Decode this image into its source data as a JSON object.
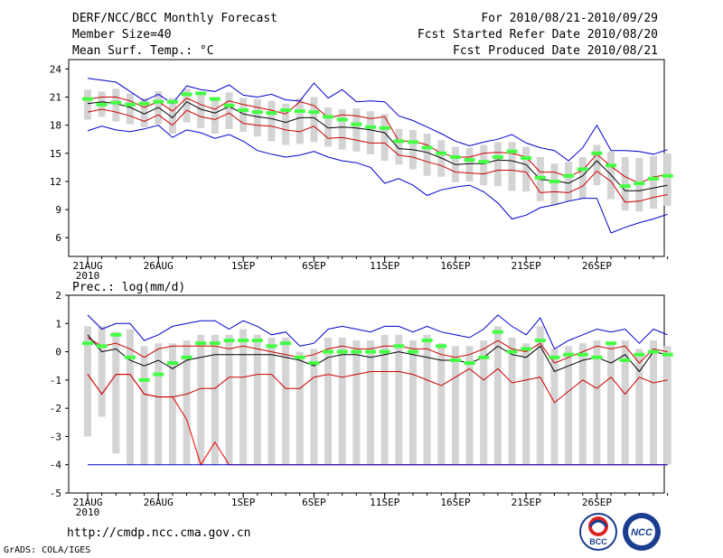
{
  "header": {
    "title": "DERF/NCC/BCC Monthly Forecast",
    "member_size": "Member Size=40",
    "variable": "Mean Surf. Temp.: °C",
    "forecast_range": "For 2010/08/21-2010/09/29",
    "start_ref_date": "Fcst Started Refer Date 2010/08/20",
    "produced_date": "Fcst Produced Date 2010/08/21"
  },
  "footer": {
    "url": "http://cmdp.ncc.cma.gov.cn",
    "credit": "GrADS: COLA/IGES"
  },
  "logos": {
    "bcc": "BCC",
    "ncc": "NCC"
  },
  "colors": {
    "max": "#0000cc",
    "min": "#cc0000",
    "p25": "#ee0000",
    "mean": "#000000",
    "box": "#d4d4d4",
    "obs": "#44ff44"
  },
  "chart_data": [
    {
      "type": "line",
      "title": "Mean Surf. Temp.: °C",
      "ylabel": "",
      "ylim": [
        4,
        25
      ],
      "yticks": [
        6,
        9,
        12,
        15,
        18,
        21,
        24
      ],
      "x_tick_labels": [
        {
          "day": 0,
          "label": "21AUG"
        },
        {
          "day": 5,
          "label": "26AUG"
        },
        {
          "day": 11,
          "label": "1SEP"
        },
        {
          "day": 16,
          "label": "6SEP"
        },
        {
          "day": 21,
          "label": "11SEP"
        },
        {
          "day": 26,
          "label": "16SEP"
        },
        {
          "day": 31,
          "label": "21SEP"
        },
        {
          "day": 36,
          "label": "26SEP"
        }
      ],
      "year_label": "2010",
      "series": [
        {
          "name": "max",
          "values": [
            23,
            22.8,
            22.6,
            21.6,
            20.6,
            21.3,
            20.3,
            22.2,
            21.8,
            21.6,
            22.3,
            21.2,
            21,
            21.3,
            20.7,
            20.6,
            22.5,
            20.9,
            21.8,
            20.5,
            20.6,
            20.5,
            19,
            18.5,
            17.8,
            17.1,
            16.3,
            15.8,
            16.2,
            16.5,
            17,
            16.1,
            15.6,
            15.3,
            14.2,
            15.6,
            18,
            15.3,
            15.3,
            15.2,
            14.9,
            15.4
          ]
        },
        {
          "name": "upper",
          "values": [
            20.8,
            21,
            21,
            20.6,
            19.9,
            20.5,
            19.5,
            20.9,
            20.2,
            19.7,
            20.6,
            20.2,
            19.9,
            19.6,
            19.2,
            20.5,
            20.1,
            18.8,
            19.1,
            19,
            18.7,
            18.9,
            16.3,
            16.3,
            15.9,
            15,
            14.6,
            14.6,
            15,
            15.1,
            15,
            14.6,
            13,
            13,
            12.5,
            13.2,
            14.9,
            13.6,
            12.5,
            11.8,
            12.5,
            12.7
          ]
        },
        {
          "name": "mean",
          "values": [
            20.3,
            20.5,
            20.3,
            19.9,
            19.2,
            19.9,
            18.8,
            20.5,
            19.7,
            19.3,
            20,
            19.2,
            18.9,
            18.7,
            18.3,
            18.8,
            18.8,
            17.7,
            17.8,
            17.7,
            17.5,
            17.2,
            15.5,
            15.4,
            15.1,
            14.5,
            13.8,
            13.9,
            13.9,
            14.3,
            14.2,
            13.8,
            12.2,
            12.1,
            11.8,
            12.6,
            14.2,
            12.7,
            11,
            11,
            11.3,
            11.6
          ]
        },
        {
          "name": "lower",
          "values": [
            19.4,
            19.7,
            19.4,
            19,
            18.4,
            19.1,
            18,
            19.6,
            18.9,
            18.6,
            19.3,
            18.2,
            18,
            17.9,
            17.5,
            17.3,
            17.9,
            16.6,
            16.7,
            16.4,
            16.1,
            16.1,
            14.8,
            14.6,
            14.1,
            13.7,
            13,
            12.9,
            12.8,
            13.2,
            13.2,
            13,
            10.8,
            10.9,
            10.8,
            11.5,
            13.1,
            12,
            9.8,
            9.9,
            10.3,
            10.6
          ]
        },
        {
          "name": "min",
          "values": [
            17.4,
            17.9,
            17.5,
            17.3,
            17.6,
            18,
            16.7,
            17.5,
            17.2,
            16.6,
            17,
            16.3,
            15.3,
            14.9,
            14.6,
            14.8,
            15.2,
            14.6,
            14.2,
            14,
            13.5,
            11.8,
            12.3,
            11.6,
            10.5,
            11.1,
            11.4,
            11.6,
            10.9,
            9.7,
            8,
            8.4,
            9.2,
            9.5,
            9.9,
            10.2,
            10.2,
            6.5,
            7.1,
            7.6,
            8,
            8.5
          ]
        }
      ],
      "obs_marks": [
        20.8,
        20.2,
        20.4,
        20.2,
        20.3,
        20.5,
        20.5,
        21.3,
        21.4,
        20.8,
        20.1,
        19.6,
        19.4,
        19.3,
        19.6,
        19.5,
        19.4,
        18.9,
        18.6,
        18.1,
        17.8,
        17.7,
        16.3,
        16.2,
        15.6,
        15.0,
        14.6,
        14.3,
        14.1,
        14.6,
        15.2,
        14.5,
        12.4,
        12.0,
        12.6,
        13.3,
        15.0,
        13.7,
        11.5,
        11.8,
        12.3,
        12.6
      ],
      "box_ranges": [
        [
          18.6,
          21.8
        ],
        [
          18.9,
          21.6
        ],
        [
          18.4,
          21.9
        ],
        [
          18.1,
          21.4
        ],
        [
          17.8,
          20.9
        ],
        [
          18.1,
          21.6
        ],
        [
          17.1,
          20.9
        ],
        [
          18.3,
          21.9
        ],
        [
          17.7,
          21.3
        ],
        [
          17.1,
          21.0
        ],
        [
          17.6,
          21.5
        ],
        [
          17.3,
          20.9
        ],
        [
          16.8,
          20.8
        ],
        [
          16.3,
          20.6
        ],
        [
          15.9,
          20.3
        ],
        [
          16.0,
          20.9
        ],
        [
          16.2,
          21.0
        ],
        [
          15.7,
          19.9
        ],
        [
          15.4,
          19.7
        ],
        [
          15.2,
          19.8
        ],
        [
          14.9,
          19.5
        ],
        [
          14.2,
          19.2
        ],
        [
          13.8,
          17.6
        ],
        [
          13.3,
          17.5
        ],
        [
          12.6,
          17.1
        ],
        [
          12.5,
          16.4
        ],
        [
          11.9,
          15.7
        ],
        [
          12.0,
          15.6
        ],
        [
          11.6,
          15.9
        ],
        [
          11.5,
          16.2
        ],
        [
          11.0,
          16.2
        ],
        [
          10.9,
          15.7
        ],
        [
          9.9,
          14.6
        ],
        [
          9.5,
          13.9
        ],
        [
          9.9,
          14.1
        ],
        [
          10.2,
          14.6
        ],
        [
          11.6,
          15.9
        ],
        [
          10.1,
          15.2
        ],
        [
          8.9,
          14.6
        ],
        [
          8.8,
          14.5
        ],
        [
          9.1,
          14.7
        ],
        [
          9.4,
          15.0
        ]
      ]
    },
    {
      "type": "line",
      "title": "Prec.: log(mm/d)",
      "ylabel": "",
      "ylim": [
        -5,
        2
      ],
      "yticks": [
        -5,
        -4,
        -3,
        -2,
        -1,
        0,
        1,
        2
      ],
      "x_tick_labels": [
        {
          "day": 0,
          "label": "21AUG"
        },
        {
          "day": 5,
          "label": "26AUG"
        },
        {
          "day": 11,
          "label": "1SEP"
        },
        {
          "day": 16,
          "label": "6SEP"
        },
        {
          "day": 21,
          "label": "11SEP"
        },
        {
          "day": 26,
          "label": "16SEP"
        },
        {
          "day": 31,
          "label": "21SEP"
        },
        {
          "day": 36,
          "label": "26SEP"
        }
      ],
      "year_label": "2010",
      "series": [
        {
          "name": "max",
          "values": [
            1.3,
            0.8,
            1.0,
            1.0,
            0.4,
            0.6,
            0.9,
            1.0,
            1.1,
            1.1,
            0.8,
            1.1,
            0.9,
            0.6,
            0.7,
            0.2,
            0.3,
            0.8,
            0.9,
            0.8,
            0.7,
            0.9,
            0.9,
            0.7,
            0.9,
            0.7,
            0.6,
            0.5,
            0.8,
            1.3,
            0.9,
            0.6,
            1.2,
            0.1,
            0.4,
            0.6,
            0.8,
            0.7,
            0.8,
            0.3,
            0.8,
            0.6
          ]
        },
        {
          "name": "upper",
          "values": [
            0.5,
            0.2,
            0.3,
            0.1,
            -0.2,
            0.1,
            0.2,
            0.2,
            0.2,
            0.2,
            0.1,
            0.2,
            0.1,
            0,
            -0.1,
            -0.2,
            -0.1,
            0.1,
            0.2,
            0.1,
            0.1,
            0.2,
            0.2,
            0.1,
            0.1,
            -0.1,
            -0.2,
            -0.1,
            0.1,
            0.4,
            0.1,
            0,
            0.3,
            -0.4,
            -0.2,
            0,
            0.2,
            0.1,
            0.2,
            -0.4,
            0.1,
            0
          ]
        },
        {
          "name": "mean",
          "values": [
            0.6,
            0,
            0.1,
            -0.3,
            -0.5,
            -0.3,
            -0.6,
            -0.3,
            -0.2,
            -0.1,
            -0.1,
            -0.1,
            -0.1,
            -0.1,
            -0.2,
            -0.3,
            -0.5,
            -0.2,
            -0.1,
            -0.1,
            -0.2,
            -0.1,
            0,
            -0.1,
            -0.2,
            -0.3,
            -0.3,
            -0.4,
            -0.2,
            0.2,
            -0.1,
            -0.2,
            0.2,
            -0.7,
            -0.5,
            -0.3,
            -0.2,
            -0.4,
            -0.1,
            -0.7,
            0,
            -0.1
          ]
        },
        {
          "name": "p25",
          "values": [
            -0.8,
            -1.5,
            -0.8,
            -0.8,
            -1.5,
            -1.6,
            -1.6,
            -2.4,
            -4,
            -3.2,
            -4,
            -4,
            -4,
            -4,
            -4,
            -4,
            -4,
            -4,
            -4,
            -4,
            -4,
            -4,
            -4,
            -4,
            -4,
            -4,
            -4,
            -4,
            -4,
            -4,
            -4,
            -4,
            -4,
            -4,
            -4,
            -4,
            -4,
            -4,
            -4,
            -4,
            -4,
            -4
          ]
        },
        {
          "name": "p10",
          "values": [
            -0.8,
            -1.5,
            -0.8,
            -0.8,
            -1.5,
            -1.6,
            -1.6,
            -1.5,
            -1.3,
            -1.3,
            -0.9,
            -0.9,
            -0.8,
            -0.8,
            -1.3,
            -1.3,
            -0.9,
            -0.8,
            -0.9,
            -0.8,
            -0.7,
            -0.7,
            -0.7,
            -0.8,
            -1.0,
            -1.2,
            -0.9,
            -0.6,
            -1.0,
            -0.6,
            -1.1,
            -1.0,
            -0.9,
            -1.8,
            -1.4,
            -1.0,
            -1.3,
            -0.9,
            -1.5,
            -0.9,
            -1.1,
            -1.0
          ]
        },
        {
          "name": "floor",
          "values": [
            -4,
            -4,
            -4,
            -4,
            -4,
            -4,
            -4,
            -4,
            -4,
            -4,
            -4,
            -4,
            -4,
            -4,
            -4,
            -4,
            -4,
            -4,
            -4,
            -4,
            -4,
            -4,
            -4,
            -4,
            -4,
            -4,
            -4,
            -4,
            -4,
            -4,
            -4,
            -4,
            -4,
            -4,
            -4,
            -4,
            -4,
            -4,
            -4,
            -4,
            -4,
            -4
          ]
        }
      ],
      "obs_marks": [
        0.3,
        0.2,
        0.6,
        -0.2,
        -1.0,
        -0.8,
        -0.4,
        -0.2,
        0.3,
        0.3,
        0.4,
        0.4,
        0.4,
        0.2,
        0.3,
        -0.2,
        -0.4,
        0.0,
        0.0,
        0.0,
        0.0,
        0.0,
        0.2,
        0.0,
        0.4,
        0.2,
        -0.3,
        -0.4,
        -0.2,
        0.7,
        0.0,
        0.1,
        0.4,
        -0.2,
        -0.1,
        -0.1,
        -0.2,
        0.3,
        -0.3,
        -0.1,
        0.0,
        -0.1
      ],
      "box_ranges": [
        [
          -3.0,
          0.9
        ],
        [
          -2.3,
          0.9
        ],
        [
          -3.6,
          0.7
        ],
        [
          -4.0,
          0.8
        ],
        [
          -4.0,
          0.2
        ],
        [
          -4.0,
          0.3
        ],
        [
          -4.0,
          0.3
        ],
        [
          -4.0,
          0.4
        ],
        [
          -4.0,
          0.6
        ],
        [
          -4.0,
          0.6
        ],
        [
          -4.0,
          0.6
        ],
        [
          -4.0,
          0.8
        ],
        [
          -4.0,
          0.6
        ],
        [
          -4.0,
          0.5
        ],
        [
          -4.0,
          0.5
        ],
        [
          -4.0,
          0.0
        ],
        [
          -4.0,
          0.1
        ],
        [
          -4.0,
          0.5
        ],
        [
          -4.0,
          0.5
        ],
        [
          -4.0,
          0.4
        ],
        [
          -4.0,
          0.4
        ],
        [
          -4.0,
          0.6
        ],
        [
          -4.0,
          0.6
        ],
        [
          -4.0,
          0.4
        ],
        [
          -4.0,
          0.6
        ],
        [
          -4.0,
          0.3
        ],
        [
          -4.0,
          0.2
        ],
        [
          -4.0,
          0.2
        ],
        [
          -4.0,
          0.4
        ],
        [
          -4.0,
          0.9
        ],
        [
          -4.0,
          0.5
        ],
        [
          -4.0,
          0.3
        ],
        [
          -4.0,
          0.9
        ],
        [
          -4.0,
          0.1
        ],
        [
          -4.0,
          0.2
        ],
        [
          -4.0,
          0.3
        ],
        [
          -4.0,
          0.4
        ],
        [
          -4.0,
          0.3
        ],
        [
          -4.0,
          0.4
        ],
        [
          -4.0,
          0.1
        ],
        [
          -4.0,
          0.4
        ],
        [
          -4.0,
          0.2
        ]
      ]
    }
  ]
}
